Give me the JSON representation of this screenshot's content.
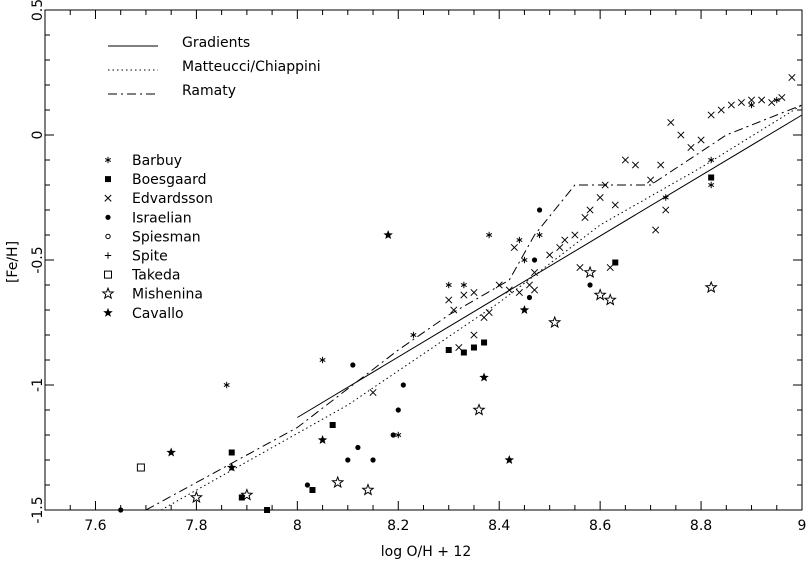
{
  "chart_data": {
    "type": "scatter",
    "xlabel": "log O/H + 12",
    "ylabel": "[Fe/H]",
    "xlim": [
      7.5,
      9.0
    ],
    "ylim": [
      -1.5,
      0.5
    ],
    "x_ticks": [
      7.6,
      7.8,
      8,
      8.2,
      8.4,
      8.6,
      8.8,
      9
    ],
    "x_tick_labels": [
      "7.6",
      "7.8",
      "8",
      "8.2",
      "8.4",
      "8.6",
      "8.8",
      "9"
    ],
    "y_ticks": [
      -1.5,
      -1,
      -0.5,
      0,
      0.5
    ],
    "y_tick_labels": [
      "-1.5",
      "-1",
      "-0.5",
      "0",
      "0.5"
    ],
    "grid": false,
    "legend_position": "top-left",
    "lines": [
      {
        "name": "Gradients",
        "style": "solid",
        "x": [
          8.0,
          9.0
        ],
        "y": [
          -1.13,
          0.08
        ]
      },
      {
        "name": "Matteucci/Chiappini",
        "style": "dotted",
        "x": [
          7.73,
          8.1,
          8.4,
          8.6,
          8.8,
          9.0
        ],
        "y": [
          -1.5,
          -1.08,
          -0.67,
          -0.36,
          -0.13,
          0.12
        ]
      },
      {
        "name": "Ramaty",
        "style": "dashdot",
        "x": [
          7.7,
          7.9,
          8.0,
          8.2,
          8.3,
          8.42,
          8.47,
          8.55,
          8.7,
          8.85,
          9.0
        ],
        "y": [
          -1.5,
          -1.28,
          -1.17,
          -0.86,
          -0.72,
          -0.58,
          -0.4,
          -0.2,
          -0.2,
          0.0,
          0.12
        ]
      }
    ],
    "series": [
      {
        "name": "Barbuy",
        "marker": "asterisk",
        "points": [
          [
            7.86,
            -1.0
          ],
          [
            8.05,
            -0.9
          ],
          [
            8.23,
            -0.8
          ],
          [
            8.3,
            -0.6
          ],
          [
            8.33,
            -0.6
          ],
          [
            8.38,
            -0.4
          ],
          [
            8.44,
            -0.42
          ],
          [
            8.45,
            -0.5
          ],
          [
            8.48,
            -0.4
          ],
          [
            8.73,
            -0.25
          ],
          [
            8.82,
            -0.1
          ],
          [
            8.9,
            0.12
          ],
          [
            8.95,
            0.14
          ],
          [
            8.82,
            -0.2
          ],
          [
            8.2,
            -1.2
          ]
        ]
      },
      {
        "name": "Boesgaard",
        "marker": "filled-square",
        "points": [
          [
            7.87,
            -1.27
          ],
          [
            7.89,
            -1.45
          ],
          [
            7.94,
            -1.5
          ],
          [
            8.03,
            -1.42
          ],
          [
            8.07,
            -1.16
          ],
          [
            8.3,
            -0.86
          ],
          [
            8.33,
            -0.87
          ],
          [
            8.35,
            -0.85
          ],
          [
            8.37,
            -0.83
          ],
          [
            8.63,
            -0.51
          ],
          [
            8.82,
            -0.17
          ]
        ]
      },
      {
        "name": "Edvardsson",
        "marker": "cross",
        "points": [
          [
            8.15,
            -1.03
          ],
          [
            8.3,
            -0.66
          ],
          [
            8.31,
            -0.7
          ],
          [
            8.33,
            -0.64
          ],
          [
            8.35,
            -0.63
          ],
          [
            8.37,
            -0.73
          ],
          [
            8.38,
            -0.71
          ],
          [
            8.4,
            -0.6
          ],
          [
            8.42,
            -0.62
          ],
          [
            8.44,
            -0.63
          ],
          [
            8.46,
            -0.6
          ],
          [
            8.47,
            -0.55
          ],
          [
            8.5,
            -0.48
          ],
          [
            8.52,
            -0.45
          ],
          [
            8.53,
            -0.42
          ],
          [
            8.55,
            -0.4
          ],
          [
            8.57,
            -0.33
          ],
          [
            8.58,
            -0.3
          ],
          [
            8.6,
            -0.25
          ],
          [
            8.61,
            -0.2
          ],
          [
            8.63,
            -0.28
          ],
          [
            8.65,
            -0.1
          ],
          [
            8.67,
            -0.12
          ],
          [
            8.7,
            -0.18
          ],
          [
            8.72,
            -0.12
          ],
          [
            8.74,
            0.05
          ],
          [
            8.76,
            0.0
          ],
          [
            8.78,
            -0.05
          ],
          [
            8.8,
            -0.02
          ],
          [
            8.82,
            0.08
          ],
          [
            8.84,
            0.1
          ],
          [
            8.86,
            0.12
          ],
          [
            8.88,
            0.13
          ],
          [
            8.9,
            0.14
          ],
          [
            8.92,
            0.14
          ],
          [
            8.94,
            0.13
          ],
          [
            8.96,
            0.15
          ],
          [
            8.98,
            0.23
          ],
          [
            8.43,
            -0.45
          ],
          [
            8.56,
            -0.53
          ],
          [
            8.62,
            -0.53
          ],
          [
            8.71,
            -0.38
          ],
          [
            8.73,
            -0.3
          ],
          [
            8.47,
            -0.62
          ],
          [
            8.35,
            -0.8
          ],
          [
            8.32,
            -0.85
          ]
        ]
      },
      {
        "name": "Israelian",
        "marker": "filled-circle",
        "points": [
          [
            7.65,
            -1.5
          ],
          [
            8.02,
            -1.4
          ],
          [
            8.1,
            -1.3
          ],
          [
            8.11,
            -0.92
          ],
          [
            8.12,
            -1.25
          ],
          [
            8.15,
            -1.3
          ],
          [
            8.19,
            -1.2
          ],
          [
            8.2,
            -1.1
          ],
          [
            8.21,
            -1.0
          ],
          [
            8.46,
            -0.65
          ],
          [
            8.47,
            -0.5
          ],
          [
            8.48,
            -0.3
          ],
          [
            8.58,
            -0.6
          ]
        ]
      },
      {
        "name": "Spiesman",
        "marker": "open-circle",
        "points": []
      },
      {
        "name": "Spite",
        "marker": "plus",
        "points": []
      },
      {
        "name": "Takeda",
        "marker": "open-square",
        "points": [
          [
            7.69,
            -1.33
          ]
        ]
      },
      {
        "name": "Mishenina",
        "marker": "open-star",
        "points": [
          [
            7.8,
            -1.45
          ],
          [
            7.9,
            -1.44
          ],
          [
            8.08,
            -1.39
          ],
          [
            8.14,
            -1.42
          ],
          [
            8.36,
            -1.1
          ],
          [
            8.51,
            -0.75
          ],
          [
            8.58,
            -0.55
          ],
          [
            8.6,
            -0.64
          ],
          [
            8.62,
            -0.66
          ],
          [
            8.82,
            -0.61
          ]
        ]
      },
      {
        "name": "Cavallo",
        "marker": "filled-star",
        "points": [
          [
            7.75,
            -1.27
          ],
          [
            7.87,
            -1.33
          ],
          [
            8.05,
            -1.22
          ],
          [
            8.18,
            -0.4
          ],
          [
            8.37,
            -0.97
          ],
          [
            8.42,
            -1.3
          ],
          [
            8.45,
            -0.7
          ]
        ]
      }
    ]
  }
}
